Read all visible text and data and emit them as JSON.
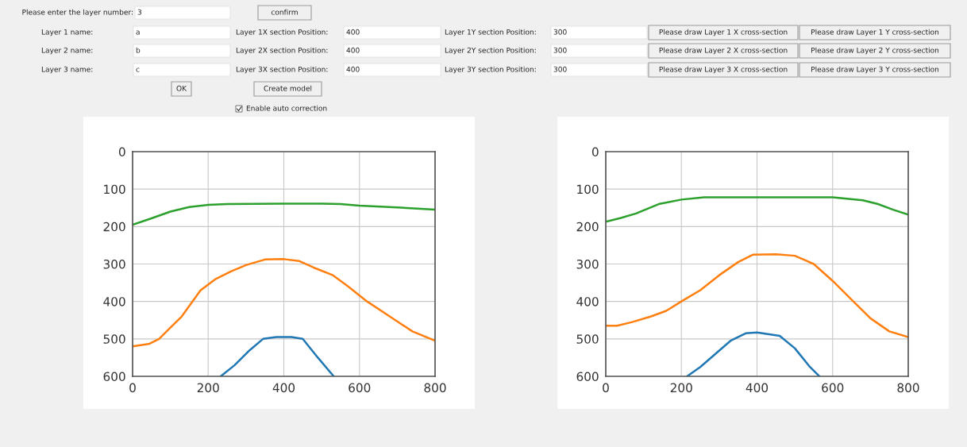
{
  "chart_data": [
    {
      "type": "other",
      "annotations": [
        "Please enter the layer number:",
        "3",
        "confirm",
        "Layer 1 name:",
        "a",
        "Layer 1X section Position:",
        "400",
        "Layer 1Y section Position:",
        "300",
        "Please draw Layer 1 X cross-section",
        "Please draw Layer 1 Y cross-section",
        "Layer 2 name:",
        "b",
        "Layer 2X section Position:",
        "400",
        "Layer 2Y section Position:",
        "300",
        "Please draw Layer 2 X cross-section",
        "Please draw Layer 2 Y cross-section",
        "Layer 3 name:",
        "c",
        "Layer 3X section Position:",
        "400",
        "Layer 3Y section Position:",
        "300",
        "Please draw Layer 3 X cross-section",
        "Please draw Layer 3 Y cross-section",
        "OK",
        "Create model",
        "Enable auto correction"
      ]
    },
    {
      "type": "line",
      "xlim": [
        0,
        800
      ],
      "xticks": [
        0,
        200,
        400,
        600,
        800
      ],
      "ylim": [
        600,
        0
      ],
      "yticks": [
        0,
        100,
        200,
        300,
        400,
        500,
        600
      ],
      "grid": true,
      "series": [
        {
          "color": "#2ca02c",
          "x": [
            0,
            50,
            100,
            150,
            200,
            250,
            400,
            500,
            550,
            600,
            700,
            800
          ],
          "values": [
            195,
            178,
            160,
            148,
            142,
            140,
            139,
            139,
            140,
            144,
            149,
            155
          ]
        },
        {
          "color": "#ff7f0e",
          "x": [
            0,
            45,
            70,
            100,
            130,
            180,
            220,
            260,
            300,
            350,
            400,
            440,
            480,
            530,
            570,
            620,
            680,
            740,
            800
          ],
          "values": [
            520,
            513,
            500,
            470,
            440,
            370,
            340,
            320,
            303,
            288,
            287,
            292,
            310,
            330,
            360,
            400,
            440,
            480,
            505
          ]
        },
        {
          "color": "#1f77b4",
          "x": [
            233,
            270,
            310,
            345,
            380,
            420,
            450,
            490,
            532
          ],
          "values": [
            600,
            570,
            530,
            500,
            495,
            495,
            500,
            550,
            600
          ]
        }
      ]
    },
    {
      "type": "line",
      "xlim": [
        0,
        800
      ],
      "xticks": [
        0,
        200,
        400,
        600,
        800
      ],
      "ylim": [
        600,
        0
      ],
      "yticks": [
        0,
        100,
        200,
        300,
        400,
        500,
        600
      ],
      "grid": true,
      "series": [
        {
          "color": "#2ca02c",
          "x": [
            0,
            40,
            80,
            140,
            200,
            260,
            400,
            600,
            680,
            720,
            760,
            800
          ],
          "values": [
            187,
            177,
            165,
            140,
            128,
            122,
            122,
            122,
            130,
            140,
            155,
            168
          ]
        },
        {
          "color": "#ff7f0e",
          "x": [
            0,
            30,
            70,
            120,
            160,
            200,
            250,
            300,
            350,
            390,
            450,
            500,
            550,
            600,
            650,
            700,
            750,
            800
          ],
          "values": [
            465,
            465,
            455,
            440,
            425,
            400,
            370,
            330,
            295,
            275,
            274,
            278,
            300,
            345,
            395,
            445,
            480,
            495
          ]
        },
        {
          "color": "#1f77b4",
          "x": [
            215,
            250,
            290,
            330,
            370,
            400,
            460,
            500,
            540,
            565
          ],
          "values": [
            600,
            575,
            540,
            505,
            485,
            483,
            492,
            525,
            575,
            600
          ]
        }
      ]
    }
  ]
}
